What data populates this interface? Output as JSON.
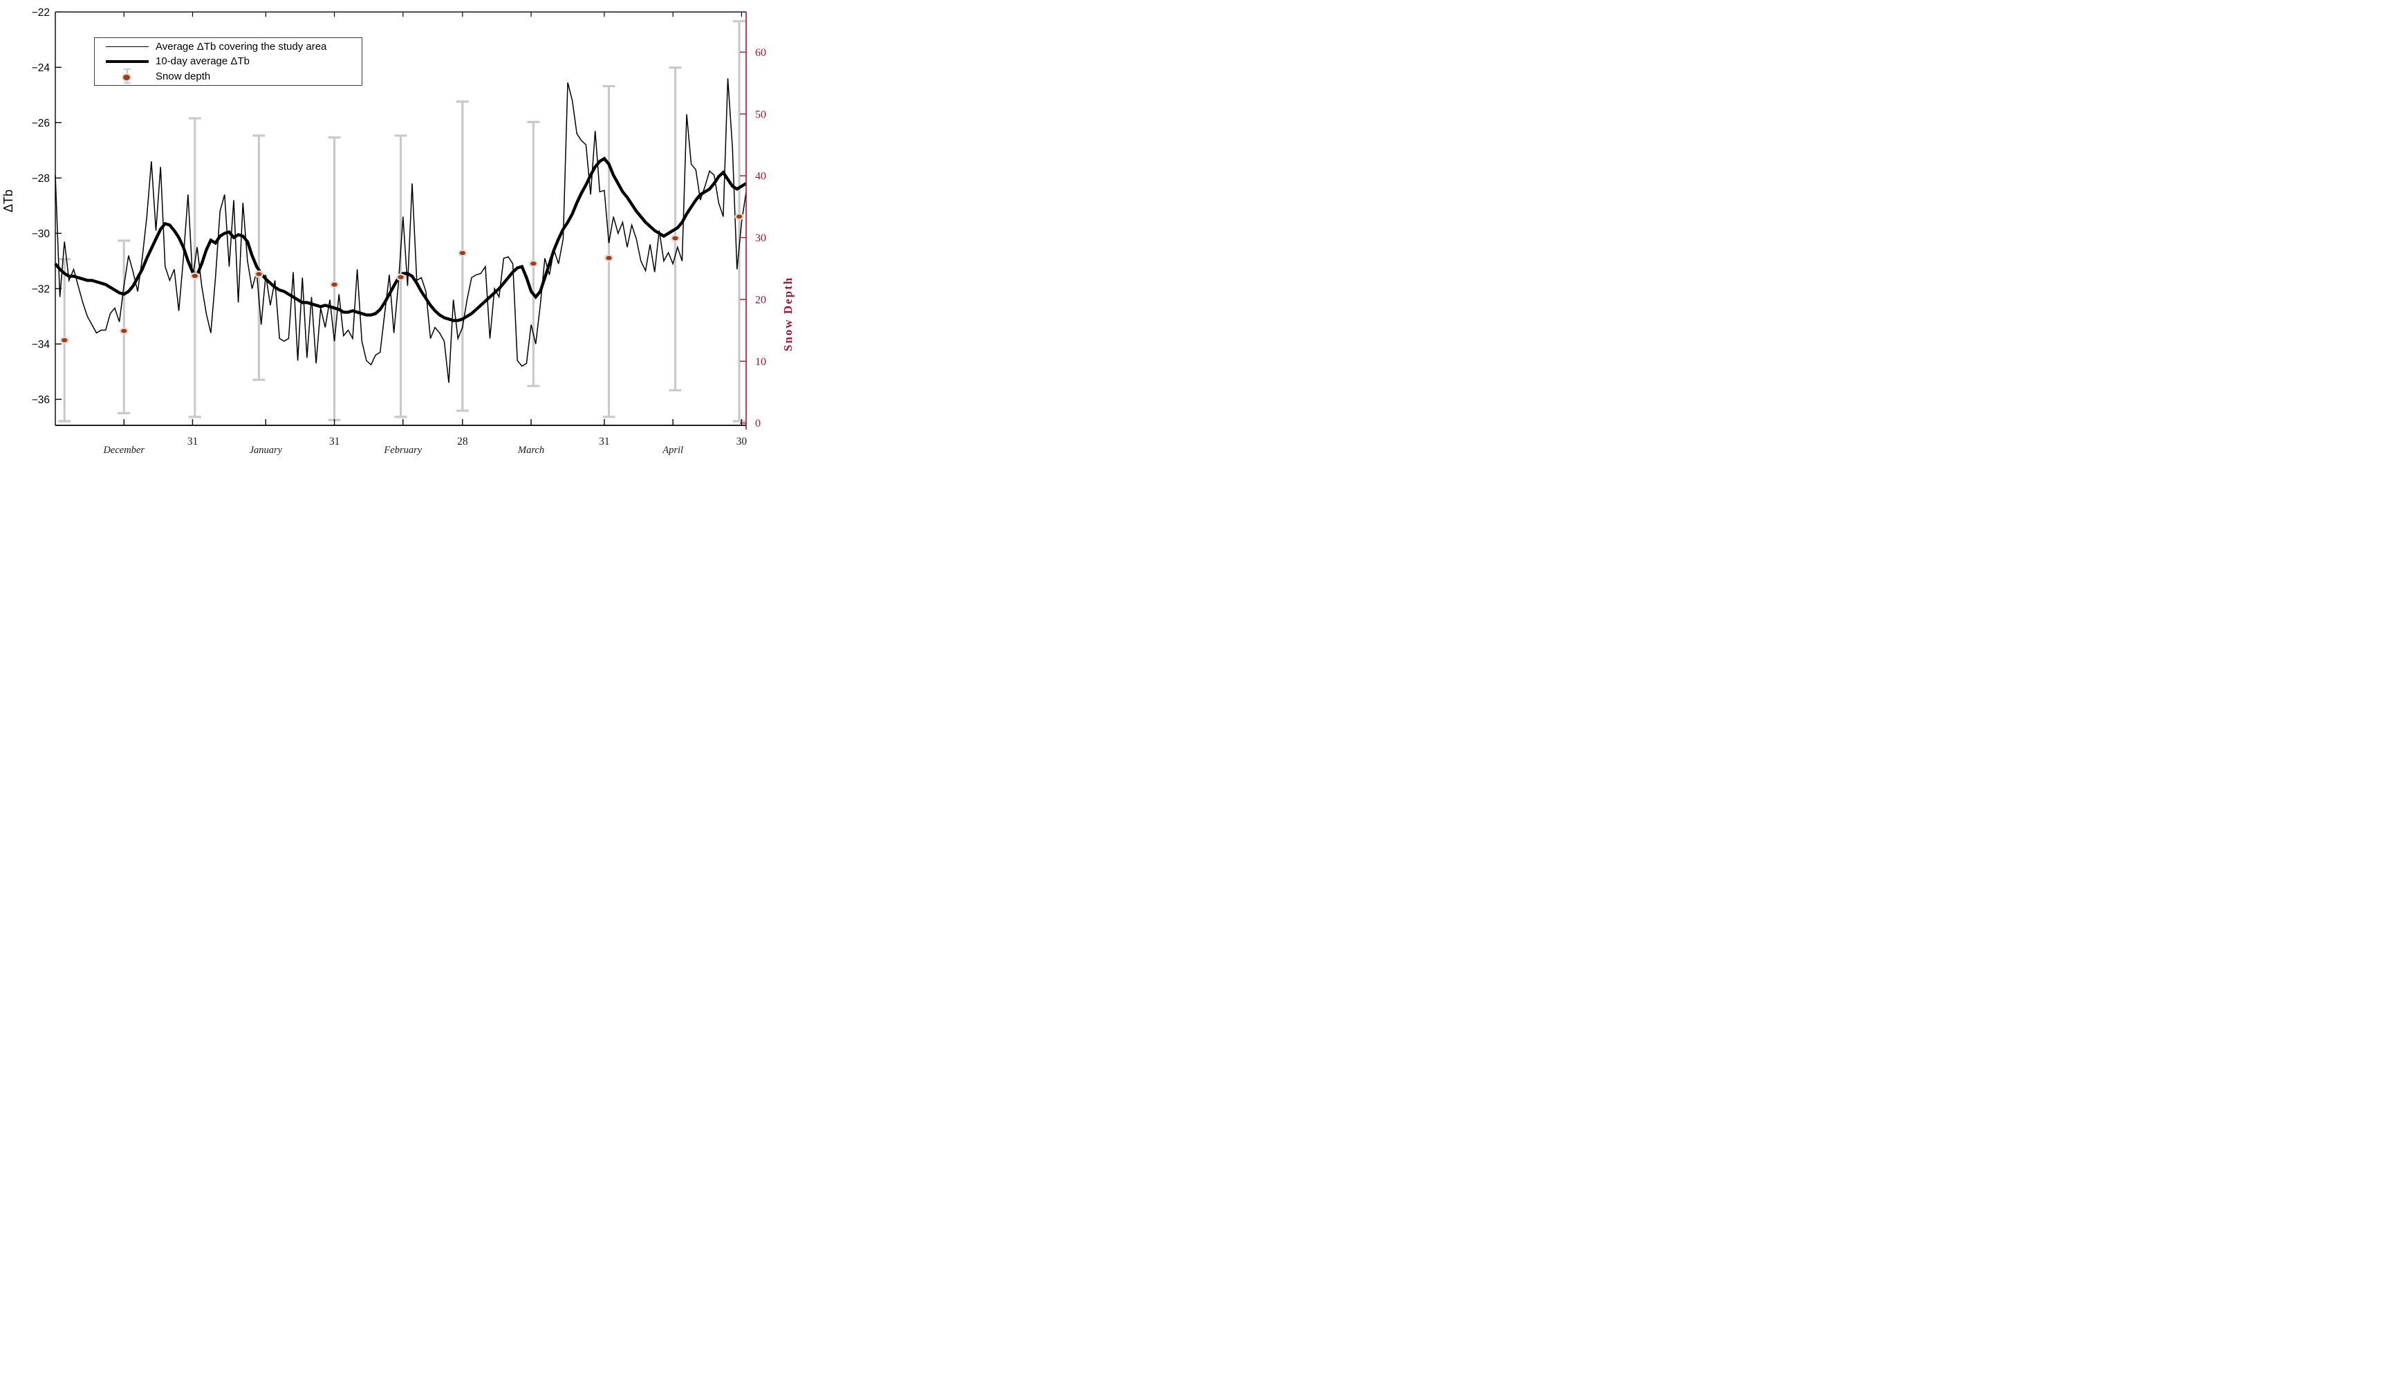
{
  "figure": {
    "background": "#ffffff"
  },
  "legend": {
    "items": [
      {
        "sample": "thin-line",
        "label": "Average ΔTb covering the study area"
      },
      {
        "sample": "thick-line",
        "label": "10-day average ΔTb"
      },
      {
        "sample": "dot-with-errorbar",
        "label": "Snow depth"
      }
    ]
  },
  "chart_data": {
    "type": "line",
    "title": "",
    "x_axis": {
      "label": "",
      "unit": "days since Dec 1",
      "range": [
        0,
        151
      ],
      "ticks": [
        {
          "day": 15,
          "label": "December",
          "style": "month"
        },
        {
          "day": 30,
          "label": "31",
          "style": "number"
        },
        {
          "day": 46,
          "label": "January",
          "style": "month"
        },
        {
          "day": 61,
          "label": "31",
          "style": "number"
        },
        {
          "day": 76,
          "label": "February",
          "style": "month"
        },
        {
          "day": 89,
          "label": "28",
          "style": "number"
        },
        {
          "day": 104,
          "label": "March",
          "style": "month"
        },
        {
          "day": 120,
          "label": "31",
          "style": "number"
        },
        {
          "day": 135,
          "label": "April",
          "style": "month"
        },
        {
          "day": 150,
          "label": "30",
          "style": "number"
        }
      ]
    },
    "y_left": {
      "label": "ΔTb",
      "min": -36.94,
      "max": -22,
      "ticks": [
        -22,
        -24,
        -26,
        -28,
        -30,
        -32,
        -34,
        -36
      ],
      "color": "#000000"
    },
    "y_right": {
      "label": "Snow Depth",
      "min": 0,
      "max": 66.5,
      "ticks": [
        0,
        10,
        20,
        30,
        40,
        50,
        60
      ],
      "color": "#A2142F"
    },
    "colors": {
      "thin_line": "#000000",
      "thick_line": "#000000",
      "snow_dot_fill": "#A53C0F",
      "snow_dot_rim": "#dcdcdc",
      "error_bar": "#c9c9c9",
      "right_axis": "#A2142F"
    },
    "series": [
      {
        "name": "Average ΔTb covering the study area",
        "axis": "left",
        "type": "line",
        "x_start_day": 0,
        "values": [
          -27.9,
          -32.3,
          -30.3,
          -31.7,
          -31.3,
          -31.9,
          -32.5,
          -33.0,
          -33.3,
          -33.6,
          -33.5,
          -33.5,
          -32.9,
          -32.7,
          -33.2,
          -31.9,
          -30.8,
          -31.4,
          -32.1,
          -30.9,
          -29.4,
          -27.4,
          -29.9,
          -27.6,
          -31.2,
          -31.7,
          -31.3,
          -32.8,
          -30.9,
          -28.6,
          -31.6,
          -30.5,
          -31.9,
          -32.9,
          -33.6,
          -31.6,
          -29.2,
          -28.6,
          -31.2,
          -28.8,
          -32.5,
          -28.9,
          -31.0,
          -32.0,
          -31.4,
          -33.3,
          -31.5,
          -32.6,
          -31.7,
          -33.8,
          -33.9,
          -33.8,
          -31.4,
          -34.6,
          -31.6,
          -34.5,
          -32.3,
          -34.7,
          -32.7,
          -33.4,
          -32.4,
          -33.9,
          -32.2,
          -33.7,
          -33.5,
          -33.8,
          -31.3,
          -33.9,
          -34.6,
          -34.75,
          -34.4,
          -34.3,
          -32.9,
          -31.5,
          -33.6,
          -31.8,
          -29.4,
          -31.9,
          -28.2,
          -31.7,
          -31.6,
          -32.1,
          -33.8,
          -33.4,
          -33.6,
          -33.9,
          -35.4,
          -32.4,
          -33.8,
          -33.4,
          -32.4,
          -31.6,
          -31.5,
          -31.45,
          -31.2,
          -33.8,
          -32.0,
          -32.3,
          -30.9,
          -30.85,
          -31.1,
          -34.6,
          -34.8,
          -34.7,
          -33.3,
          -34.0,
          -32.6,
          -30.9,
          -31.5,
          -30.6,
          -31.1,
          -30.2,
          -24.55,
          -25.2,
          -26.4,
          -26.65,
          -26.8,
          -28.6,
          -26.3,
          -28.5,
          -28.45,
          -30.35,
          -29.4,
          -30.0,
          -29.6,
          -30.5,
          -29.7,
          -30.2,
          -31.0,
          -31.35,
          -30.4,
          -31.4,
          -29.9,
          -31.0,
          -30.7,
          -31.1,
          -30.5,
          -31.0,
          -25.7,
          -27.5,
          -27.7,
          -28.8,
          -28.3,
          -27.75,
          -27.9,
          -28.9,
          -29.4,
          -24.4,
          -26.9,
          -31.3,
          -29.6,
          -28.5
        ]
      },
      {
        "name": "10-day average ΔTb",
        "axis": "left",
        "type": "line",
        "x_start_day": 0,
        "values": [
          -31.1,
          -31.3,
          -31.45,
          -31.55,
          -31.55,
          -31.6,
          -31.65,
          -31.7,
          -31.7,
          -31.75,
          -31.8,
          -31.85,
          -31.95,
          -32.05,
          -32.15,
          -32.2,
          -32.1,
          -31.9,
          -31.6,
          -31.3,
          -30.9,
          -30.55,
          -30.2,
          -29.85,
          -29.65,
          -29.7,
          -29.9,
          -30.15,
          -30.5,
          -31.0,
          -31.4,
          -31.5,
          -31.1,
          -30.6,
          -30.25,
          -30.35,
          -30.1,
          -30.0,
          -29.95,
          -30.15,
          -30.05,
          -30.1,
          -30.3,
          -30.8,
          -31.2,
          -31.45,
          -31.65,
          -31.8,
          -31.95,
          -32.05,
          -32.1,
          -32.2,
          -32.3,
          -32.4,
          -32.5,
          -32.5,
          -32.55,
          -32.6,
          -32.65,
          -32.6,
          -32.65,
          -32.7,
          -32.75,
          -32.85,
          -32.85,
          -32.8,
          -32.85,
          -32.9,
          -32.95,
          -32.95,
          -32.9,
          -32.75,
          -32.5,
          -32.2,
          -31.9,
          -31.6,
          -31.45,
          -31.45,
          -31.55,
          -31.8,
          -32.1,
          -32.35,
          -32.6,
          -32.8,
          -32.95,
          -33.05,
          -33.1,
          -33.15,
          -33.15,
          -33.1,
          -33.0,
          -32.9,
          -32.75,
          -32.6,
          -32.45,
          -32.3,
          -32.15,
          -32.0,
          -31.8,
          -31.6,
          -31.4,
          -31.25,
          -31.2,
          -31.6,
          -32.1,
          -32.3,
          -32.1,
          -31.6,
          -31.1,
          -30.6,
          -30.2,
          -29.85,
          -29.6,
          -29.3,
          -28.9,
          -28.55,
          -28.25,
          -27.9,
          -27.6,
          -27.4,
          -27.3,
          -27.5,
          -27.9,
          -28.2,
          -28.5,
          -28.7,
          -28.95,
          -29.2,
          -29.4,
          -29.6,
          -29.75,
          -29.9,
          -30.0,
          -30.1,
          -30.0,
          -29.9,
          -29.8,
          -29.6,
          -29.3,
          -29.05,
          -28.8,
          -28.6,
          -28.5,
          -28.4,
          -28.2,
          -27.95,
          -27.8,
          -28.05,
          -28.3,
          -28.4,
          -28.3,
          -28.2
        ]
      },
      {
        "name": "Snow depth",
        "axis": "right",
        "type": "scatter-errorbar",
        "days": [
          2,
          15,
          30.5,
          44.5,
          61,
          75.5,
          89,
          104.5,
          121,
          135.5,
          149.5
        ],
        "values": [
          13.4,
          14.9,
          23.8,
          24.1,
          22.4,
          23.6,
          27.5,
          25.8,
          26.7,
          29.9,
          33.4
        ],
        "err_low": [
          0.3,
          1.6,
          1.0,
          7.0,
          0.5,
          1.0,
          2.0,
          6.0,
          1.0,
          5.3,
          0.3
        ],
        "err_high": [
          26.5,
          29.5,
          49.3,
          46.5,
          46.2,
          46.5,
          52.0,
          48.7,
          54.5,
          57.5,
          65.0
        ]
      }
    ],
    "legend_position": "top-left-inside",
    "grid": false
  }
}
